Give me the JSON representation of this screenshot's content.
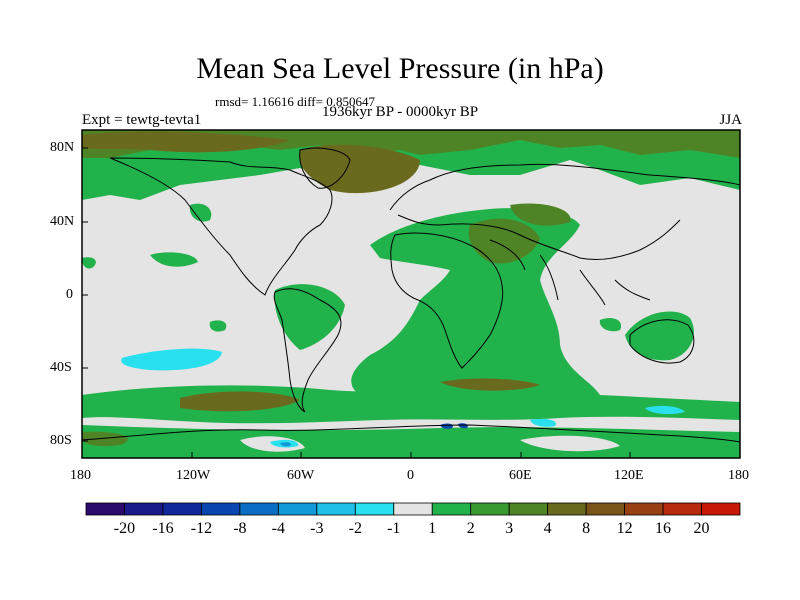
{
  "title": "Mean Sea Level Pressure (in hPa)",
  "stats": "rmsd= 1.16616  diff= 0.850647",
  "left_label": "Expt = tewtg-tevta1",
  "center_label": "1936kyr BP - 0000kyr BP",
  "right_label": "JJA",
  "lat_ticks": [
    "80N",
    "40N",
    "0",
    "40S",
    "80S"
  ],
  "lon_ticks": [
    "180",
    "120W",
    "60W",
    "0",
    "60E",
    "120E",
    "180"
  ],
  "colorbar": {
    "colors": [
      "#2a0a6a",
      "#1a1a8a",
      "#10289a",
      "#0a46b0",
      "#0a6fc4",
      "#129ad8",
      "#20c0e8",
      "#28e0ee",
      "#e4e4e4",
      "#22b24c",
      "#3a9a32",
      "#4f8426",
      "#6a6a1e",
      "#7a5418",
      "#984014",
      "#b82a0c",
      "#c81808"
    ],
    "labels": [
      "-20",
      "-16",
      "-12",
      "-8",
      "-4",
      "-3",
      "-2",
      "-1",
      "1",
      "2",
      "3",
      "4",
      "8",
      "12",
      "16",
      "20"
    ]
  }
}
